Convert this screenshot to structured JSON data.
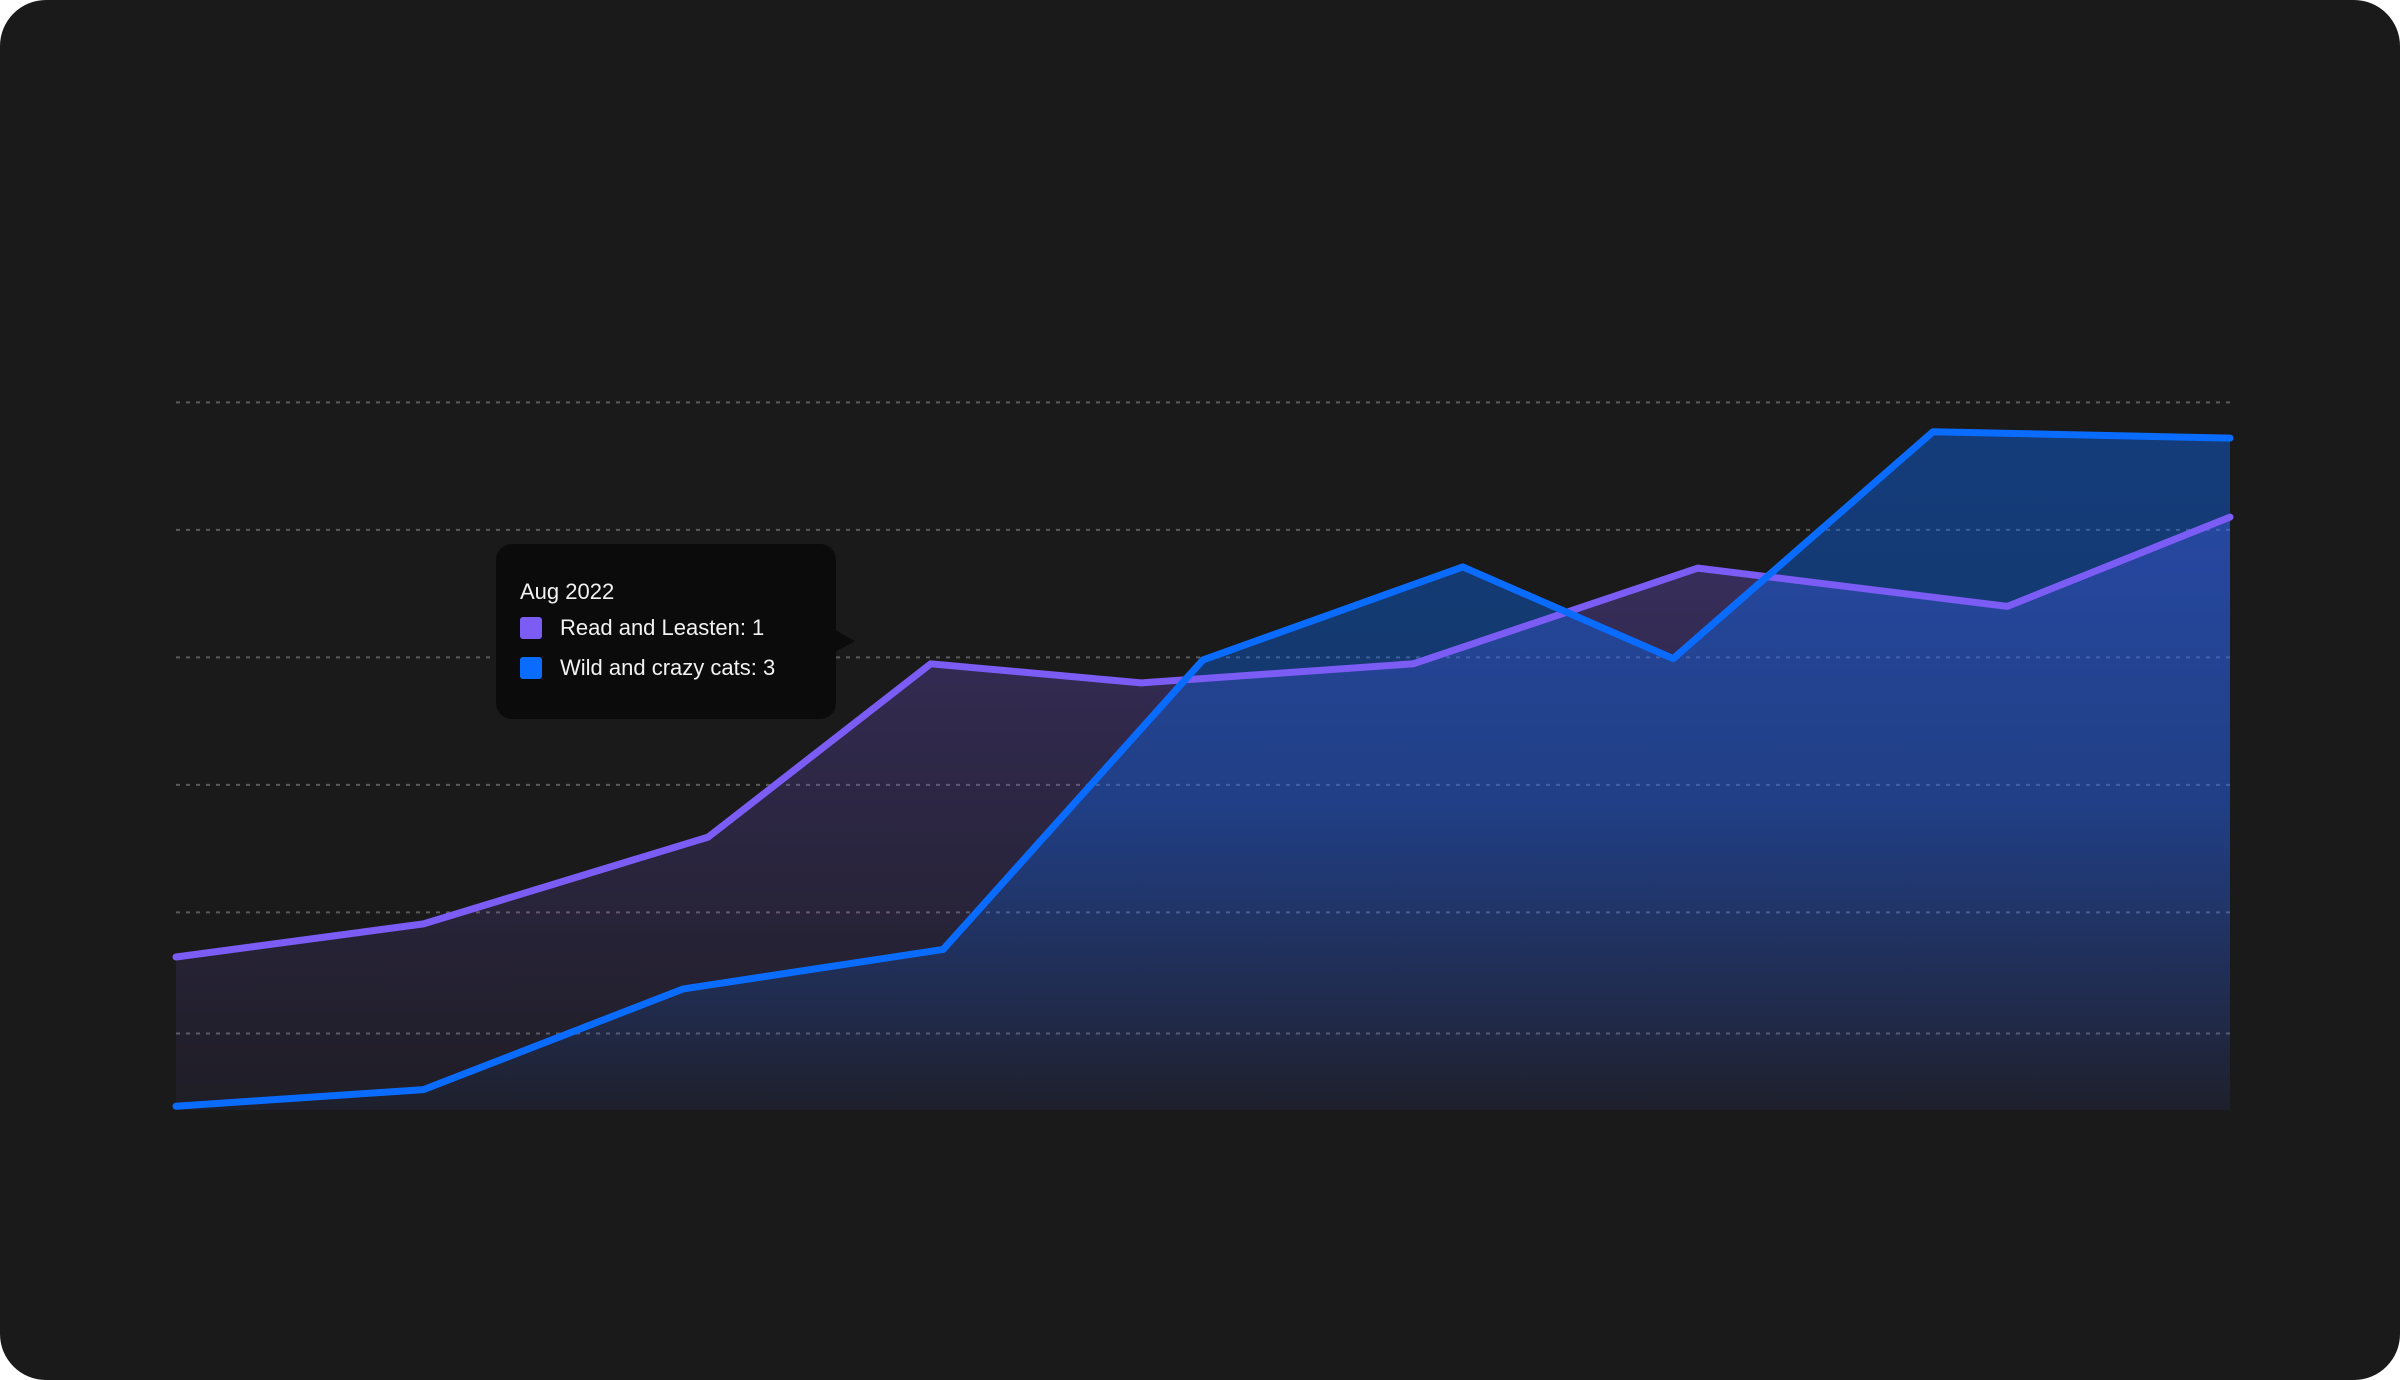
{
  "colors": {
    "background": "#1a1a1a",
    "grid": "#5a5a5a",
    "tooltip_bg": "#0b0b0b"
  },
  "tooltip": {
    "title": "Aug 2022",
    "items": [
      {
        "label": "Read and Leasten: 1",
        "color": "#7b5cf5"
      },
      {
        "label": "Wild and crazy cats: 3",
        "color": "#0a6cff"
      }
    ]
  },
  "chart_data": {
    "type": "area",
    "title": "",
    "xlabel": "",
    "ylabel": "",
    "grid": true,
    "legend": "none",
    "ylim": [
      0,
      6
    ],
    "x": [
      0,
      1,
      2,
      3,
      4,
      5,
      6,
      7,
      8,
      9
    ],
    "series": [
      {
        "color": "#7b5cf5",
        "points": [
          [
            0,
            1.2
          ],
          [
            1,
            1.46
          ],
          [
            2.15,
            2.14
          ],
          [
            3.05,
            3.5
          ],
          [
            3.9,
            3.35
          ],
          [
            5,
            3.5
          ],
          [
            6.15,
            4.25
          ],
          [
            7.4,
            3.95
          ],
          [
            8.3,
            4.65
          ]
        ]
      },
      {
        "color": "#0a6cff",
        "points": [
          [
            0,
            0.03
          ],
          [
            1,
            0.16
          ],
          [
            2.05,
            0.95
          ],
          [
            3.1,
            1.26
          ],
          [
            4.15,
            3.53
          ],
          [
            5.2,
            4.26
          ],
          [
            6.05,
            3.54
          ],
          [
            7.1,
            5.32
          ],
          [
            8.3,
            5.27
          ]
        ]
      }
    ],
    "gridlines": [
      0.6,
      1.55,
      2.55,
      3.55,
      4.55,
      5.55
    ]
  }
}
